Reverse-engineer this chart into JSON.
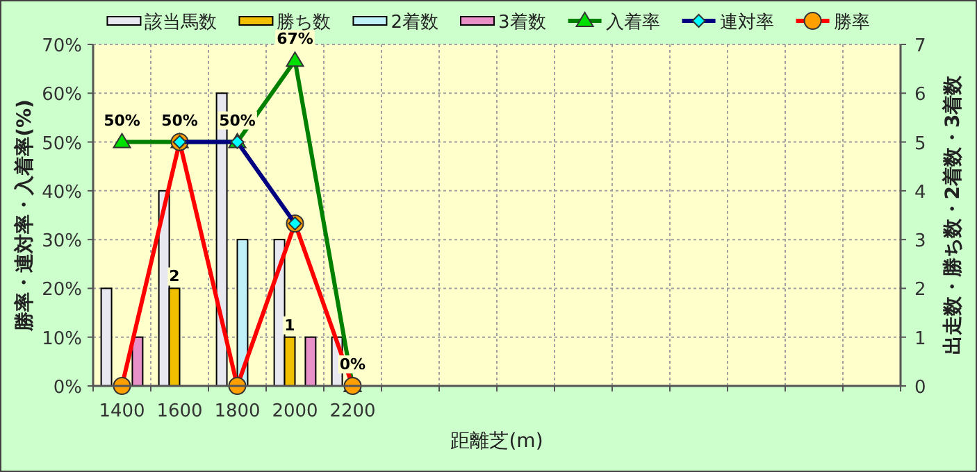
{
  "chart_data": {
    "type": "bar",
    "xlabel": "距離芝(m)",
    "ylabel": "勝率・連対率・入着率(%)",
    "y2label": "出走数・勝ち数・2着数・3着数",
    "categories": [
      "1400",
      "1600",
      "1800",
      "2000",
      "2200",
      null,
      null,
      null,
      null,
      null,
      null,
      null,
      null,
      null
    ],
    "ylim": [
      0,
      70
    ],
    "yticks": [
      {
        "value": 0,
        "label": "0%"
      },
      {
        "value": 10,
        "label": "10%"
      },
      {
        "value": 20,
        "label": "20%"
      },
      {
        "value": 30,
        "label": "30%"
      },
      {
        "value": 40,
        "label": "40%"
      },
      {
        "value": 50,
        "label": "50%"
      },
      {
        "value": 60,
        "label": "60%"
      },
      {
        "value": 70,
        "label": "70%"
      }
    ],
    "y2lim": [
      0,
      7
    ],
    "y2ticks": [
      0,
      1,
      2,
      3,
      4,
      5,
      6,
      7
    ],
    "grid": true,
    "legend": "top",
    "series": [
      {
        "name": "該当馬数",
        "axis": "y2",
        "color": "#e8e8f0",
        "values": [
          2,
          4,
          6,
          3,
          1,
          null,
          null,
          null,
          null,
          null,
          null,
          null,
          null,
          null
        ]
      },
      {
        "name": "勝ち数",
        "axis": "y2",
        "color": "#f0c000",
        "values": [
          0,
          2,
          0,
          1,
          0,
          null,
          null,
          null,
          null,
          null,
          null,
          null,
          null,
          null
        ],
        "value_labels": [
          null,
          "2",
          null,
          "1",
          null,
          null,
          null,
          null,
          null,
          null,
          null,
          null,
          null,
          null
        ]
      },
      {
        "name": "2着数",
        "axis": "y2",
        "color": "#c0f0f8",
        "values": [
          0,
          0,
          3,
          0,
          0,
          null,
          null,
          null,
          null,
          null,
          null,
          null,
          null,
          null
        ]
      },
      {
        "name": "3着数",
        "axis": "y2",
        "color": "#e890c8",
        "values": [
          1,
          0,
          0,
          1,
          0,
          null,
          null,
          null,
          null,
          null,
          null,
          null,
          null,
          null
        ]
      },
      {
        "name": "入着率",
        "type": "line",
        "axis": "y",
        "color": "#008000",
        "marker": "triangle",
        "values": [
          50,
          50,
          50,
          66.7,
          0,
          null,
          null,
          null,
          null,
          null,
          null,
          null,
          null,
          null
        ],
        "value_labels": [
          "50%",
          "50%",
          "50%",
          "67%",
          "0%",
          null,
          null,
          null,
          null,
          null,
          null,
          null,
          null,
          null
        ]
      },
      {
        "name": "連対率",
        "type": "line",
        "axis": "y",
        "color": "#000080",
        "marker": "diamond",
        "values": [
          null,
          50,
          50,
          33.3,
          null,
          null,
          null,
          null,
          null,
          null,
          null,
          null,
          null,
          null
        ]
      },
      {
        "name": "勝率",
        "type": "line",
        "axis": "y",
        "color": "#ff0000",
        "marker": "circle",
        "values": [
          0,
          50,
          0,
          33.3,
          0,
          null,
          null,
          null,
          null,
          null,
          null,
          null,
          null,
          null
        ]
      }
    ]
  }
}
